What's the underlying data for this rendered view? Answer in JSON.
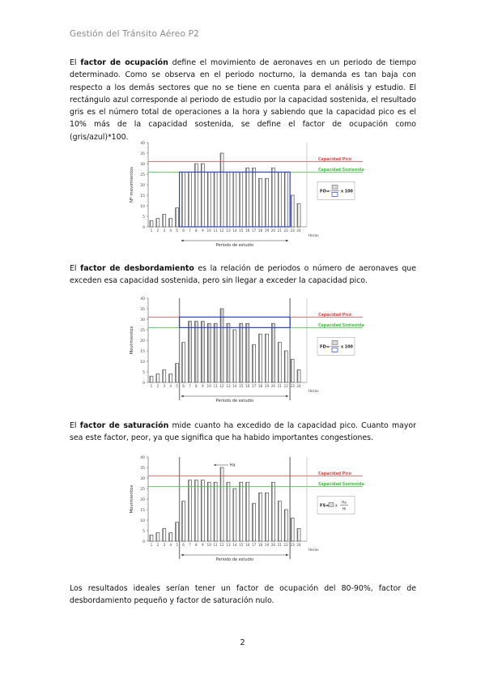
{
  "header": "Gestión del Tránsito Aéreo P2",
  "page_number": "2",
  "sections": {
    "ocupacion": {
      "pre": "El ",
      "term": "factor de ocupación",
      "post": " define el movimiento de aeronaves en un periodo de tiempo determinado. Como se observa en el periodo nocturno, la demanda es tan baja con respecto a los demás sectores que no se tiene en cuenta para el análisis y estudio.  El rectángulo azul corresponde al periodo de estudio por la capacidad sostenida, el resultado gris es el número total de operaciones a la hora y sabiendo que la capacidad pico es el 10% más de la capacidad sostenida, se define el factor de ocupación como (gris/azul)*100."
    },
    "desbordamiento": {
      "pre": "El ",
      "term": "factor de desbordamiento",
      "post": " es la relación de periodos o número de aeronaves que exceden esa capacidad sostenida, pero sin llegar a exceder la capacidad pico."
    },
    "saturacion": {
      "pre": "El ",
      "term": "factor de saturación",
      "post": " mide cuanto ha excedido de la capacidad pico. Cuanto mayor sea este factor, peor, ya que significa que ha habido importantes congestiones."
    },
    "conclusion": {
      "text": "Los resultados ideales serían tener un factor de ocupación del 80-90%, factor de desbordamiento pequeño y factor de saturación nulo."
    }
  },
  "colors": {
    "peak": "#e04848",
    "sustained": "#3cc43c",
    "box": "#2d43d8",
    "bar": "#ffffff",
    "bar_stroke": "#333333"
  },
  "chart_data": [
    {
      "type": "bar",
      "x": [
        1,
        2,
        3,
        4,
        5,
        6,
        7,
        8,
        9,
        10,
        11,
        12,
        13,
        14,
        15,
        16,
        17,
        18,
        19,
        20,
        21,
        22,
        23,
        24
      ],
      "values": [
        3,
        4,
        6,
        4,
        9,
        26,
        26,
        30,
        30,
        26,
        26,
        35,
        26,
        26,
        26,
        28,
        28,
        23,
        23,
        28,
        26,
        26,
        15,
        11
      ],
      "ylim": [
        0,
        40
      ],
      "yticks": [
        0,
        5,
        10,
        15,
        20,
        25,
        30,
        35,
        40
      ],
      "ylabel": "Nº movimientos",
      "xlabel": "Periodo de estudio",
      "xunit": "Horas",
      "peak_capacity": 31,
      "sustained_capacity": 26,
      "study_period": [
        6,
        22
      ],
      "peak_label": "Capacidad Pico",
      "sustained_label": "Capacidad Sostenida",
      "formula": {
        "left": "FO=",
        "right": "x 100"
      }
    },
    {
      "type": "bar",
      "x": [
        1,
        2,
        3,
        4,
        5,
        6,
        7,
        8,
        9,
        10,
        11,
        12,
        13,
        14,
        15,
        16,
        17,
        18,
        19,
        20,
        21,
        22,
        23,
        24
      ],
      "values": [
        3,
        4,
        6,
        4,
        9,
        19,
        29,
        29,
        29,
        28,
        28,
        35,
        28,
        25,
        28,
        28,
        18,
        23,
        23,
        28,
        19,
        15,
        11,
        6
      ],
      "ylim": [
        0,
        40
      ],
      "yticks": [
        0,
        5,
        10,
        15,
        20,
        25,
        30,
        35,
        40
      ],
      "ylabel": "Movimientos",
      "xlabel": "Periodo de estudio",
      "xunit": "Horas",
      "peak_capacity": 31,
      "sustained_capacity": 26,
      "study_period": [
        6,
        22
      ],
      "peak_label": "Capacidad Pico",
      "sustained_label": "Capacidad Sostenida",
      "formula": {
        "left": "FD=",
        "right": "x 100"
      }
    },
    {
      "type": "bar",
      "x": [
        1,
        2,
        3,
        4,
        5,
        6,
        7,
        8,
        9,
        10,
        11,
        12,
        13,
        14,
        15,
        16,
        17,
        18,
        19,
        20,
        21,
        22,
        23,
        24
      ],
      "values": [
        3,
        4,
        6,
        4,
        9,
        19,
        29,
        29,
        29,
        28,
        28,
        35,
        28,
        25,
        28,
        28,
        18,
        23,
        23,
        28,
        19,
        15,
        11,
        6
      ],
      "ylim": [
        0,
        40
      ],
      "yticks": [
        0,
        5,
        10,
        15,
        20,
        25,
        30,
        35,
        40
      ],
      "ylabel": "Movimientos",
      "xlabel": "Periodo de estudio",
      "xunit": "Horas",
      "peak_capacity": 31,
      "sustained_capacity": 26,
      "study_period": [
        6,
        22
      ],
      "peak_label": "Capacidad Pico",
      "sustained_label": "Capacidad Sostenida",
      "formula": {
        "left": "FS=",
        "mid": "x",
        "frac_num": "Ha",
        "frac_den": "Hi"
      },
      "annotation": "Ha"
    }
  ]
}
